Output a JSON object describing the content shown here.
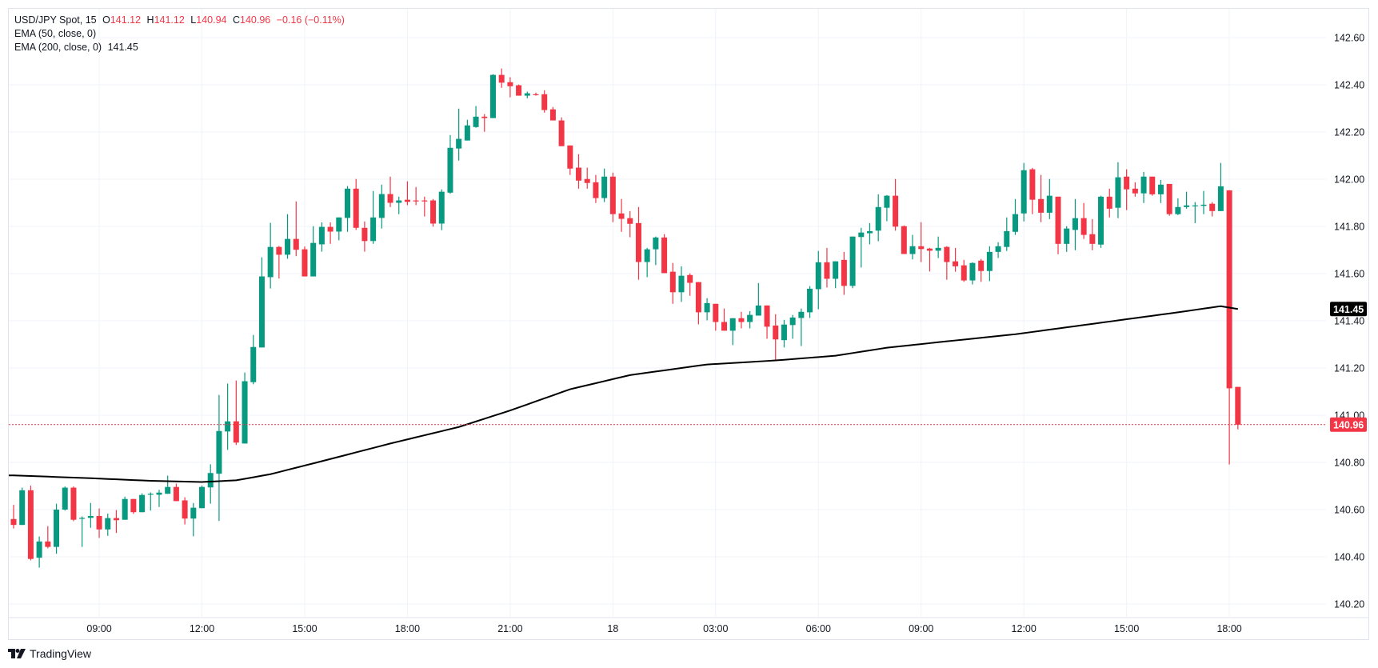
{
  "legend": {
    "symbol": "USD/JPY Spot, 15",
    "o_label": "O",
    "o": "141.12",
    "h_label": "H",
    "h": "141.12",
    "l_label": "L",
    "l": "140.94",
    "c_label": "C",
    "c": "140.96",
    "change": "−0.16 (−0.11%)",
    "ema50": "EMA (50, close, 0)",
    "ema200": "EMA (200, close, 0)",
    "ema200_value": "141.45"
  },
  "brand": "TradingView",
  "colors": {
    "up": "#089981",
    "down": "#F23645",
    "ema": "#000000",
    "grid": "#f0f3fa"
  },
  "chart_data": {
    "type": "candlestick",
    "title": "USD/JPY Spot, 15",
    "ylim": [
      140.2,
      142.6
    ],
    "yticks": [
      "142.60",
      "142.40",
      "142.20",
      "142.00",
      "141.80",
      "141.60",
      "141.40",
      "141.20",
      "141.00",
      "140.80",
      "140.60",
      "140.40",
      "140.20"
    ],
    "xticks": [
      {
        "index": 10,
        "label": "09:00"
      },
      {
        "index": 22,
        "label": "12:00"
      },
      {
        "index": 34,
        "label": "15:00"
      },
      {
        "index": 46,
        "label": "18:00"
      },
      {
        "index": 58,
        "label": "21:00"
      },
      {
        "index": 70,
        "label": "18"
      },
      {
        "index": 82,
        "label": "03:00"
      },
      {
        "index": 94,
        "label": "06:00"
      },
      {
        "index": 106,
        "label": "09:00"
      },
      {
        "index": 118,
        "label": "12:00"
      },
      {
        "index": 130,
        "label": "15:00"
      },
      {
        "index": 142,
        "label": "18:00"
      }
    ],
    "last_price": "140.96",
    "ema_label": "141.45",
    "ohlc": [
      [
        140.56,
        140.62,
        140.52,
        140.535
      ],
      [
        140.535,
        140.693,
        140.535,
        140.682
      ],
      [
        140.682,
        140.702,
        140.385,
        140.391
      ],
      [
        140.396,
        140.486,
        140.354,
        140.465
      ],
      [
        140.465,
        140.53,
        140.436,
        140.442
      ],
      [
        140.442,
        140.625,
        140.413,
        140.6
      ],
      [
        140.6,
        140.698,
        140.596,
        140.693
      ],
      [
        140.693,
        140.698,
        140.551,
        140.557
      ],
      [
        140.562,
        140.571,
        140.442,
        140.565
      ],
      [
        140.565,
        140.628,
        140.523,
        140.573
      ],
      [
        140.573,
        140.605,
        140.48,
        140.516
      ],
      [
        140.516,
        140.583,
        140.489,
        140.564
      ],
      [
        140.564,
        140.598,
        140.501,
        140.555
      ],
      [
        140.557,
        140.655,
        140.557,
        140.645
      ],
      [
        140.645,
        140.645,
        140.582,
        140.589
      ],
      [
        140.589,
        140.669,
        140.589,
        140.662
      ],
      [
        140.663,
        140.673,
        140.596,
        140.667
      ],
      [
        140.663,
        140.684,
        140.611,
        140.672
      ],
      [
        140.667,
        140.744,
        140.667,
        140.696
      ],
      [
        140.696,
        140.71,
        140.636,
        140.636
      ],
      [
        140.639,
        140.652,
        140.537,
        140.562
      ],
      [
        140.562,
        140.628,
        140.487,
        140.608
      ],
      [
        140.606,
        140.702,
        140.606,
        140.696
      ],
      [
        140.694,
        140.792,
        140.625,
        140.755
      ],
      [
        140.752,
        141.086,
        140.552,
        140.933
      ],
      [
        140.931,
        141.134,
        140.853,
        140.974
      ],
      [
        140.974,
        141.147,
        140.874,
        140.884
      ],
      [
        140.88,
        141.181,
        140.88,
        141.144
      ],
      [
        141.14,
        141.34,
        141.131,
        141.289
      ],
      [
        141.287,
        141.669,
        141.287,
        141.588
      ],
      [
        141.585,
        141.815,
        141.537,
        141.713
      ],
      [
        141.713,
        141.717,
        141.579,
        141.68
      ],
      [
        141.68,
        141.852,
        141.663,
        141.747
      ],
      [
        141.747,
        141.906,
        141.674,
        141.701
      ],
      [
        141.703,
        141.715,
        141.588,
        141.588
      ],
      [
        141.588,
        141.801,
        141.588,
        141.73
      ],
      [
        141.724,
        141.817,
        141.693,
        141.798
      ],
      [
        141.798,
        141.817,
        141.726,
        141.778
      ],
      [
        141.778,
        141.838,
        141.741,
        141.838
      ],
      [
        141.836,
        141.971,
        141.777,
        141.96
      ],
      [
        141.96,
        142.001,
        141.785,
        141.794
      ],
      [
        141.794,
        141.821,
        141.693,
        141.738
      ],
      [
        141.738,
        141.95,
        141.726,
        141.838
      ],
      [
        141.836,
        141.977,
        141.791,
        141.937
      ],
      [
        141.937,
        142.011,
        141.882,
        141.9
      ],
      [
        141.9,
        141.926,
        141.852,
        141.91
      ],
      [
        141.913,
        141.991,
        141.89,
        141.904
      ],
      [
        141.91,
        141.967,
        141.89,
        141.906
      ],
      [
        141.91,
        141.926,
        141.842,
        141.906
      ],
      [
        141.91,
        141.916,
        141.799,
        141.812
      ],
      [
        141.812,
        141.957,
        141.784,
        141.947
      ],
      [
        141.943,
        142.187,
        141.938,
        142.133
      ],
      [
        142.13,
        142.299,
        142.079,
        142.171
      ],
      [
        142.164,
        142.252,
        142.164,
        142.228
      ],
      [
        142.221,
        142.31,
        142.218,
        142.265
      ],
      [
        142.265,
        142.276,
        142.201,
        142.259
      ],
      [
        142.259,
        142.445,
        142.259,
        142.442
      ],
      [
        142.442,
        142.469,
        142.387,
        142.409
      ],
      [
        142.411,
        142.432,
        142.347,
        142.394
      ],
      [
        142.398,
        142.401,
        142.354,
        142.354
      ],
      [
        142.354,
        142.371,
        142.343,
        142.364
      ],
      [
        142.36,
        142.367,
        142.354,
        142.357
      ],
      [
        142.36,
        142.377,
        142.282,
        142.293
      ],
      [
        142.296,
        142.306,
        142.249,
        142.249
      ],
      [
        142.249,
        142.262,
        142.14,
        142.14
      ],
      [
        142.143,
        142.143,
        142.018,
        142.045
      ],
      [
        142.049,
        142.106,
        141.96,
        141.994
      ],
      [
        142.001,
        142.049,
        141.96,
        141.984
      ],
      [
        141.987,
        142.018,
        141.899,
        141.92
      ],
      [
        141.92,
        142.045,
        141.903,
        142.011
      ],
      [
        142.011,
        142.028,
        141.818,
        141.852
      ],
      [
        141.855,
        141.916,
        141.777,
        141.832
      ],
      [
        141.835,
        141.865,
        141.754,
        141.811
      ],
      [
        141.814,
        141.882,
        141.574,
        141.649
      ],
      [
        141.649,
        141.709,
        141.585,
        141.703
      ],
      [
        141.703,
        141.757,
        141.636,
        141.753
      ],
      [
        141.753,
        141.767,
        141.602,
        141.602
      ],
      [
        141.608,
        141.645,
        141.472,
        141.521
      ],
      [
        141.521,
        141.631,
        141.48,
        141.591
      ],
      [
        141.594,
        141.601,
        141.506,
        141.561
      ],
      [
        141.564,
        141.564,
        141.385,
        141.436
      ],
      [
        141.436,
        141.496,
        141.402,
        141.475
      ],
      [
        141.472,
        141.472,
        141.358,
        141.395
      ],
      [
        141.395,
        141.452,
        141.358,
        141.358
      ],
      [
        141.358,
        141.411,
        141.297,
        141.411
      ],
      [
        141.411,
        141.438,
        141.368,
        141.395
      ],
      [
        141.395,
        141.441,
        141.368,
        141.425
      ],
      [
        141.422,
        141.56,
        141.422,
        141.465
      ],
      [
        141.465,
        141.465,
        141.324,
        141.375
      ],
      [
        141.38,
        141.428,
        141.229,
        141.321
      ],
      [
        141.318,
        141.404,
        141.287,
        141.384
      ],
      [
        141.382,
        141.425,
        141.324,
        141.414
      ],
      [
        141.412,
        141.452,
        141.293,
        141.438
      ],
      [
        141.436,
        141.547,
        141.412,
        141.536
      ],
      [
        141.534,
        141.696,
        141.449,
        141.648
      ],
      [
        141.648,
        141.709,
        141.541,
        141.578
      ],
      [
        141.578,
        141.652,
        141.538,
        141.652
      ],
      [
        141.658,
        141.692,
        141.51,
        141.548
      ],
      [
        141.548,
        141.757,
        141.538,
        141.757
      ],
      [
        141.755,
        141.794,
        141.626,
        141.774
      ],
      [
        141.771,
        141.814,
        141.724,
        141.78
      ],
      [
        141.782,
        141.936,
        141.737,
        141.882
      ],
      [
        141.879,
        141.933,
        141.822,
        141.93
      ],
      [
        141.93,
        142.001,
        141.782,
        141.799
      ],
      [
        141.801,
        141.804,
        141.683,
        141.683
      ],
      [
        141.683,
        141.764,
        141.66,
        141.716
      ],
      [
        141.716,
        141.818,
        141.649,
        141.704
      ],
      [
        141.706,
        141.709,
        141.609,
        141.697
      ],
      [
        141.697,
        141.757,
        141.666,
        141.709
      ],
      [
        141.713,
        141.716,
        141.574,
        141.649
      ],
      [
        141.652,
        141.709,
        141.608,
        141.631
      ],
      [
        141.635,
        141.658,
        141.565,
        141.571
      ],
      [
        141.571,
        141.648,
        141.554,
        141.645
      ],
      [
        141.655,
        141.662,
        141.565,
        141.611
      ],
      [
        141.611,
        141.716,
        141.568,
        141.692
      ],
      [
        141.692,
        141.733,
        141.666,
        141.716
      ],
      [
        141.713,
        141.838,
        141.696,
        141.78
      ],
      [
        141.777,
        141.916,
        141.764,
        141.852
      ],
      [
        141.855,
        142.069,
        141.821,
        142.038
      ],
      [
        142.042,
        142.048,
        141.852,
        141.913
      ],
      [
        141.916,
        142.018,
        141.818,
        141.858
      ],
      [
        141.858,
        142.001,
        141.831,
        141.93
      ],
      [
        141.926,
        141.926,
        141.682,
        141.726
      ],
      [
        141.726,
        141.801,
        141.692,
        141.791
      ],
      [
        141.785,
        141.916,
        141.699,
        141.835
      ],
      [
        141.835,
        141.899,
        141.747,
        141.764
      ],
      [
        141.767,
        141.831,
        141.699,
        141.726
      ],
      [
        141.723,
        141.93,
        141.709,
        141.926
      ],
      [
        141.926,
        141.96,
        141.838,
        141.875
      ],
      [
        141.879,
        142.072,
        141.835,
        142.008
      ],
      [
        142.011,
        142.042,
        141.869,
        141.957
      ],
      [
        141.96,
        141.987,
        141.926,
        141.94
      ],
      [
        141.94,
        142.031,
        141.899,
        142.011
      ],
      [
        142.011,
        142.011,
        141.93,
        141.936
      ],
      [
        141.936,
        141.997,
        141.899,
        141.977
      ],
      [
        141.98,
        141.98,
        141.845,
        141.852
      ],
      [
        141.852,
        141.919,
        141.848,
        141.882
      ],
      [
        141.882,
        141.947,
        141.875,
        141.889
      ],
      [
        141.887,
        141.903,
        141.814,
        141.889
      ],
      [
        141.887,
        141.95,
        141.852,
        141.892
      ],
      [
        141.896,
        141.903,
        141.842,
        141.865
      ],
      [
        141.865,
        142.069,
        141.865,
        141.97
      ],
      [
        141.953,
        141.953,
        140.791,
        141.114
      ],
      [
        141.12,
        141.12,
        140.94,
        140.96
      ]
    ],
    "ema200": [
      [
        0,
        140.745
      ],
      [
        9,
        140.733
      ],
      [
        16,
        140.722
      ],
      [
        22,
        140.717
      ],
      [
        26,
        140.724
      ],
      [
        30,
        140.75
      ],
      [
        36,
        140.805
      ],
      [
        44,
        140.88
      ],
      [
        52,
        140.95
      ],
      [
        58,
        141.02
      ],
      [
        65,
        141.11
      ],
      [
        72,
        141.17
      ],
      [
        81,
        141.215
      ],
      [
        89,
        141.232
      ],
      [
        96,
        141.252
      ],
      [
        102,
        141.286
      ],
      [
        109,
        141.313
      ],
      [
        117,
        141.343
      ],
      [
        126,
        141.387
      ],
      [
        136,
        141.436
      ],
      [
        141,
        141.462
      ],
      [
        143,
        141.45
      ]
    ]
  }
}
